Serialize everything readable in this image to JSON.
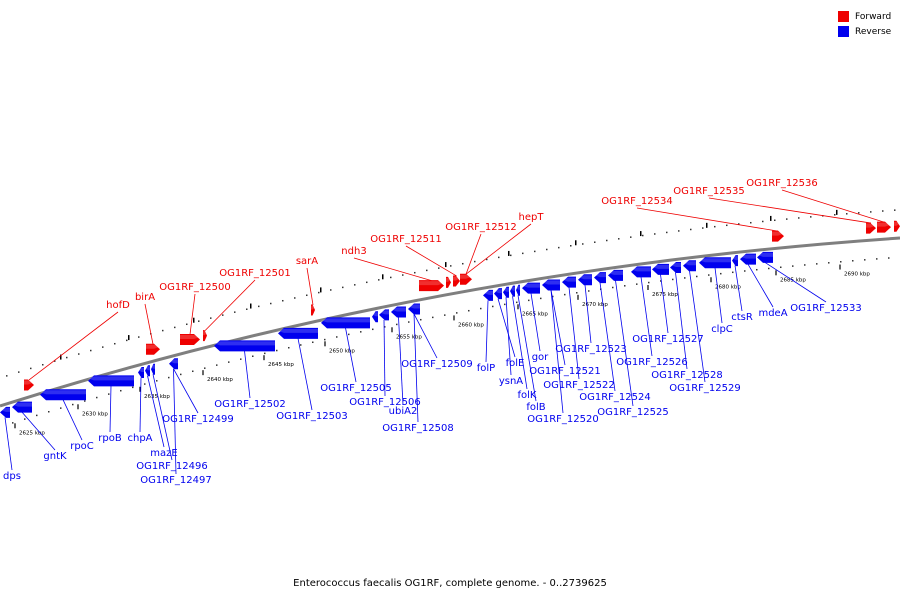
{
  "title": "Enterococcus faecalis OG1RF, complete genome. - 0..2739625",
  "legend": [
    {
      "label": "Forward",
      "color": "#ee0000"
    },
    {
      "label": "Reverse",
      "color": "#0000ee"
    }
  ],
  "colors": {
    "forward": "#ee0000",
    "reverse": "#0000ee",
    "backbone": "#7f7f7f"
  },
  "ticks": [
    "2625 kbp",
    "2630 kbp",
    "2635 kbp",
    "2640 kbp",
    "2645 kbp",
    "2650 kbp",
    "2655 kbp",
    "2660 kbp",
    "2665 kbp",
    "2670 kbp",
    "2675 kbp",
    "2680 kbp",
    "2685 kbp",
    "2690 kbp"
  ],
  "forward_labels": [
    "hofD",
    "birA",
    "OG1RF_12500",
    "OG1RF_12501",
    "sarA",
    "ndh3",
    "OG1RF_12511",
    "OG1RF_12512",
    "hepT",
    "OG1RF_12534",
    "OG1RF_12535",
    "OG1RF_12536"
  ],
  "reverse_labels": [
    "dps",
    "gntK",
    "rpoC",
    "rpoB",
    "chpA",
    "mazE",
    "OG1RF_12496",
    "OG1RF_12497",
    "OG1RF_12499",
    "OG1RF_12502",
    "OG1RF_12503",
    "OG1RF_12505",
    "OG1RF_12506",
    "ubiA2",
    "OG1RF_12508",
    "OG1RF_12509",
    "folP",
    "folE",
    "ysnA",
    "folK",
    "folB",
    "gor",
    "OG1RF_12520",
    "OG1RF_12521",
    "OG1RF_12522",
    "OG1RF_12523",
    "OG1RF_12524",
    "OG1RF_12525",
    "OG1RF_12526",
    "OG1RF_12527",
    "OG1RF_12528",
    "OG1RF_12529",
    "clpC",
    "ctsR",
    "mdeA",
    "OG1RF_12533"
  ]
}
